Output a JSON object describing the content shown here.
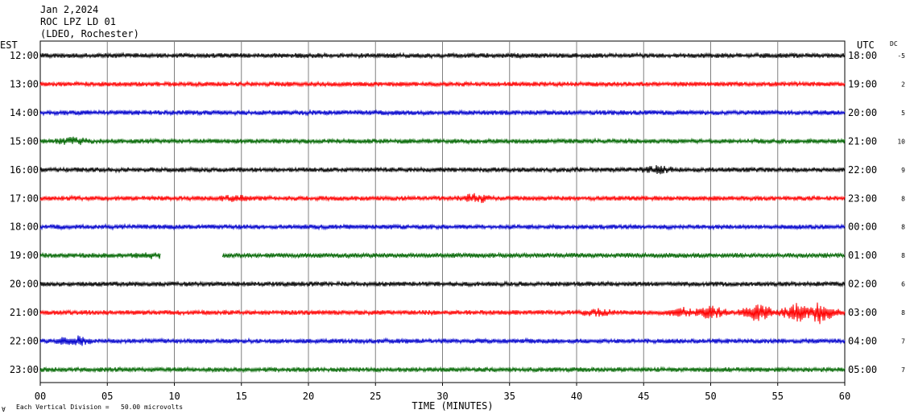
{
  "header": {
    "date": "Jan 2,2024",
    "station": "ROC LPZ LD 01",
    "network": "(LDEO, Rochester)"
  },
  "chart_data": {
    "type": "line",
    "left_timezone": "EST",
    "right_timezone": "UTC",
    "dc_label": "DC",
    "xlabel": "TIME (MINUTES)",
    "xlim": [
      0,
      60
    ],
    "x_ticks": [
      "00",
      "05",
      "10",
      "15",
      "20",
      "25",
      "30",
      "35",
      "40",
      "45",
      "50",
      "55",
      "60"
    ],
    "caption": "Each Vertical Division =   50.00 microvolts",
    "corner_mark": "∀",
    "grid": true,
    "trace_colors": [
      "#000000",
      "#ff0000",
      "#0000cc",
      "#006600"
    ],
    "rows": [
      {
        "est": "12:00",
        "utc": "18:00",
        "dc": "-5",
        "amp": 3,
        "gaps": [],
        "events": []
      },
      {
        "est": "13:00",
        "utc": "19:00",
        "dc": "2",
        "amp": 3,
        "gaps": [],
        "events": []
      },
      {
        "est": "14:00",
        "utc": "20:00",
        "dc": "5",
        "amp": 3,
        "gaps": [],
        "events": []
      },
      {
        "est": "15:00",
        "utc": "21:00",
        "dc": "10",
        "amp": 3,
        "gaps": [],
        "events": [
          [
            2.5,
            6
          ]
        ]
      },
      {
        "est": "16:00",
        "utc": "22:00",
        "dc": "9",
        "amp": 3,
        "gaps": [],
        "events": [
          [
            46,
            6
          ]
        ]
      },
      {
        "est": "17:00",
        "utc": "23:00",
        "dc": "8",
        "amp": 3,
        "gaps": [],
        "events": [
          [
            14.5,
            5
          ],
          [
            32.5,
            7
          ]
        ]
      },
      {
        "est": "18:00",
        "utc": "00:00",
        "dc": "8",
        "amp": 3,
        "gaps": [],
        "events": []
      },
      {
        "est": "19:00",
        "utc": "01:00",
        "dc": "8",
        "amp": 3,
        "gaps": [
          [
            9,
            13.6
          ]
        ],
        "events": [
          [
            8.3,
            5
          ]
        ]
      },
      {
        "est": "20:00",
        "utc": "02:00",
        "dc": "6",
        "amp": 3,
        "gaps": [],
        "events": []
      },
      {
        "est": "21:00",
        "utc": "03:00",
        "dc": "8",
        "amp": 3,
        "gaps": [],
        "events": [
          [
            41.5,
            6
          ],
          [
            48,
            7
          ],
          [
            50,
            9
          ],
          [
            53.5,
            12
          ],
          [
            56.5,
            13
          ],
          [
            58.2,
            15
          ]
        ]
      },
      {
        "est": "22:00",
        "utc": "04:00",
        "dc": "7",
        "amp": 3,
        "gaps": [],
        "events": [
          [
            2.5,
            8
          ]
        ]
      },
      {
        "est": "23:00",
        "utc": "05:00",
        "dc": "7",
        "amp": 3,
        "gaps": [],
        "events": []
      }
    ]
  }
}
